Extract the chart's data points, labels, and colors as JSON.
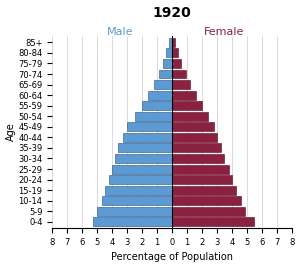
{
  "title": "1920",
  "xlabel": "Percentage of Population",
  "ylabel": "Age",
  "age_groups": [
    "0-4",
    "5-9",
    "10-14",
    "15-19",
    "20-24",
    "25-29",
    "30-34",
    "35-39",
    "40-44",
    "45-49",
    "50-54",
    "55-59",
    "60-64",
    "65-69",
    "70-74",
    "75-79",
    "80-84",
    "85+"
  ],
  "male": [
    5.3,
    5.0,
    4.7,
    4.5,
    4.2,
    4.0,
    3.8,
    3.6,
    3.3,
    3.0,
    2.5,
    2.0,
    1.6,
    1.2,
    0.9,
    0.6,
    0.4,
    0.2
  ],
  "female": [
    5.5,
    4.9,
    4.6,
    4.3,
    4.0,
    3.8,
    3.5,
    3.3,
    3.0,
    2.8,
    2.4,
    2.0,
    1.6,
    1.2,
    0.9,
    0.6,
    0.4,
    0.2
  ],
  "male_color": "#5B9BD5",
  "female_color": "#8B2040",
  "male_label_color": "#5B9BD5",
  "female_label_color": "#8B2040",
  "male_edge_color": "#2E4D7B",
  "female_edge_color": "#5A0A20",
  "grid_color": "#CCCCCC",
  "xlim": 8,
  "background_color": "#FFFFFF",
  "title_fontsize": 10,
  "label_fontsize": 7,
  "tick_fontsize": 6,
  "bar_height": 0.85
}
